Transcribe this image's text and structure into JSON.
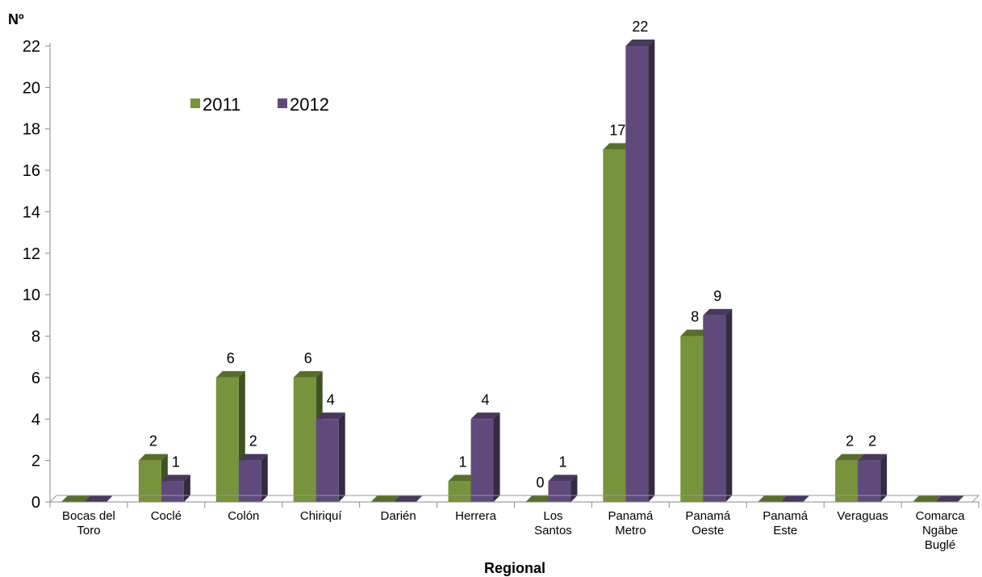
{
  "chart_data": {
    "type": "bar",
    "ylabel": "Nº",
    "xlabel": "Regional",
    "ylim": [
      0,
      22
    ],
    "yticks": [
      0,
      2,
      4,
      6,
      8,
      10,
      12,
      14,
      16,
      18,
      20,
      22
    ],
    "legend_position": "top-left",
    "categories": [
      [
        "Bocas del",
        "Toro"
      ],
      [
        "Coclé"
      ],
      [
        "Colón"
      ],
      [
        "Chiriquí"
      ],
      [
        "Darién"
      ],
      [
        "Herrera"
      ],
      [
        "Los",
        "Santos"
      ],
      [
        "Panamá",
        "Metro"
      ],
      [
        "Panamá",
        "Oeste"
      ],
      [
        "Panamá",
        "Este"
      ],
      [
        "Veraguas"
      ],
      [
        "Comarca",
        "Ngäbe",
        "Buglé"
      ]
    ],
    "series": [
      {
        "name": "2011",
        "color": "#77933C",
        "values": [
          0,
          2,
          6,
          6,
          0,
          1,
          0,
          17,
          8,
          0,
          2,
          0
        ],
        "labels": [
          null,
          "2",
          "6",
          "6",
          null,
          "1",
          "0",
          "17",
          "8",
          null,
          "2",
          null
        ]
      },
      {
        "name": "2012",
        "color": "#604A7B",
        "values": [
          0,
          1,
          2,
          4,
          0,
          4,
          1,
          22,
          9,
          0,
          2,
          0
        ],
        "labels": [
          null,
          "1",
          "2",
          "4",
          null,
          "4",
          "1",
          "22",
          "9",
          null,
          "2",
          null
        ]
      }
    ]
  }
}
